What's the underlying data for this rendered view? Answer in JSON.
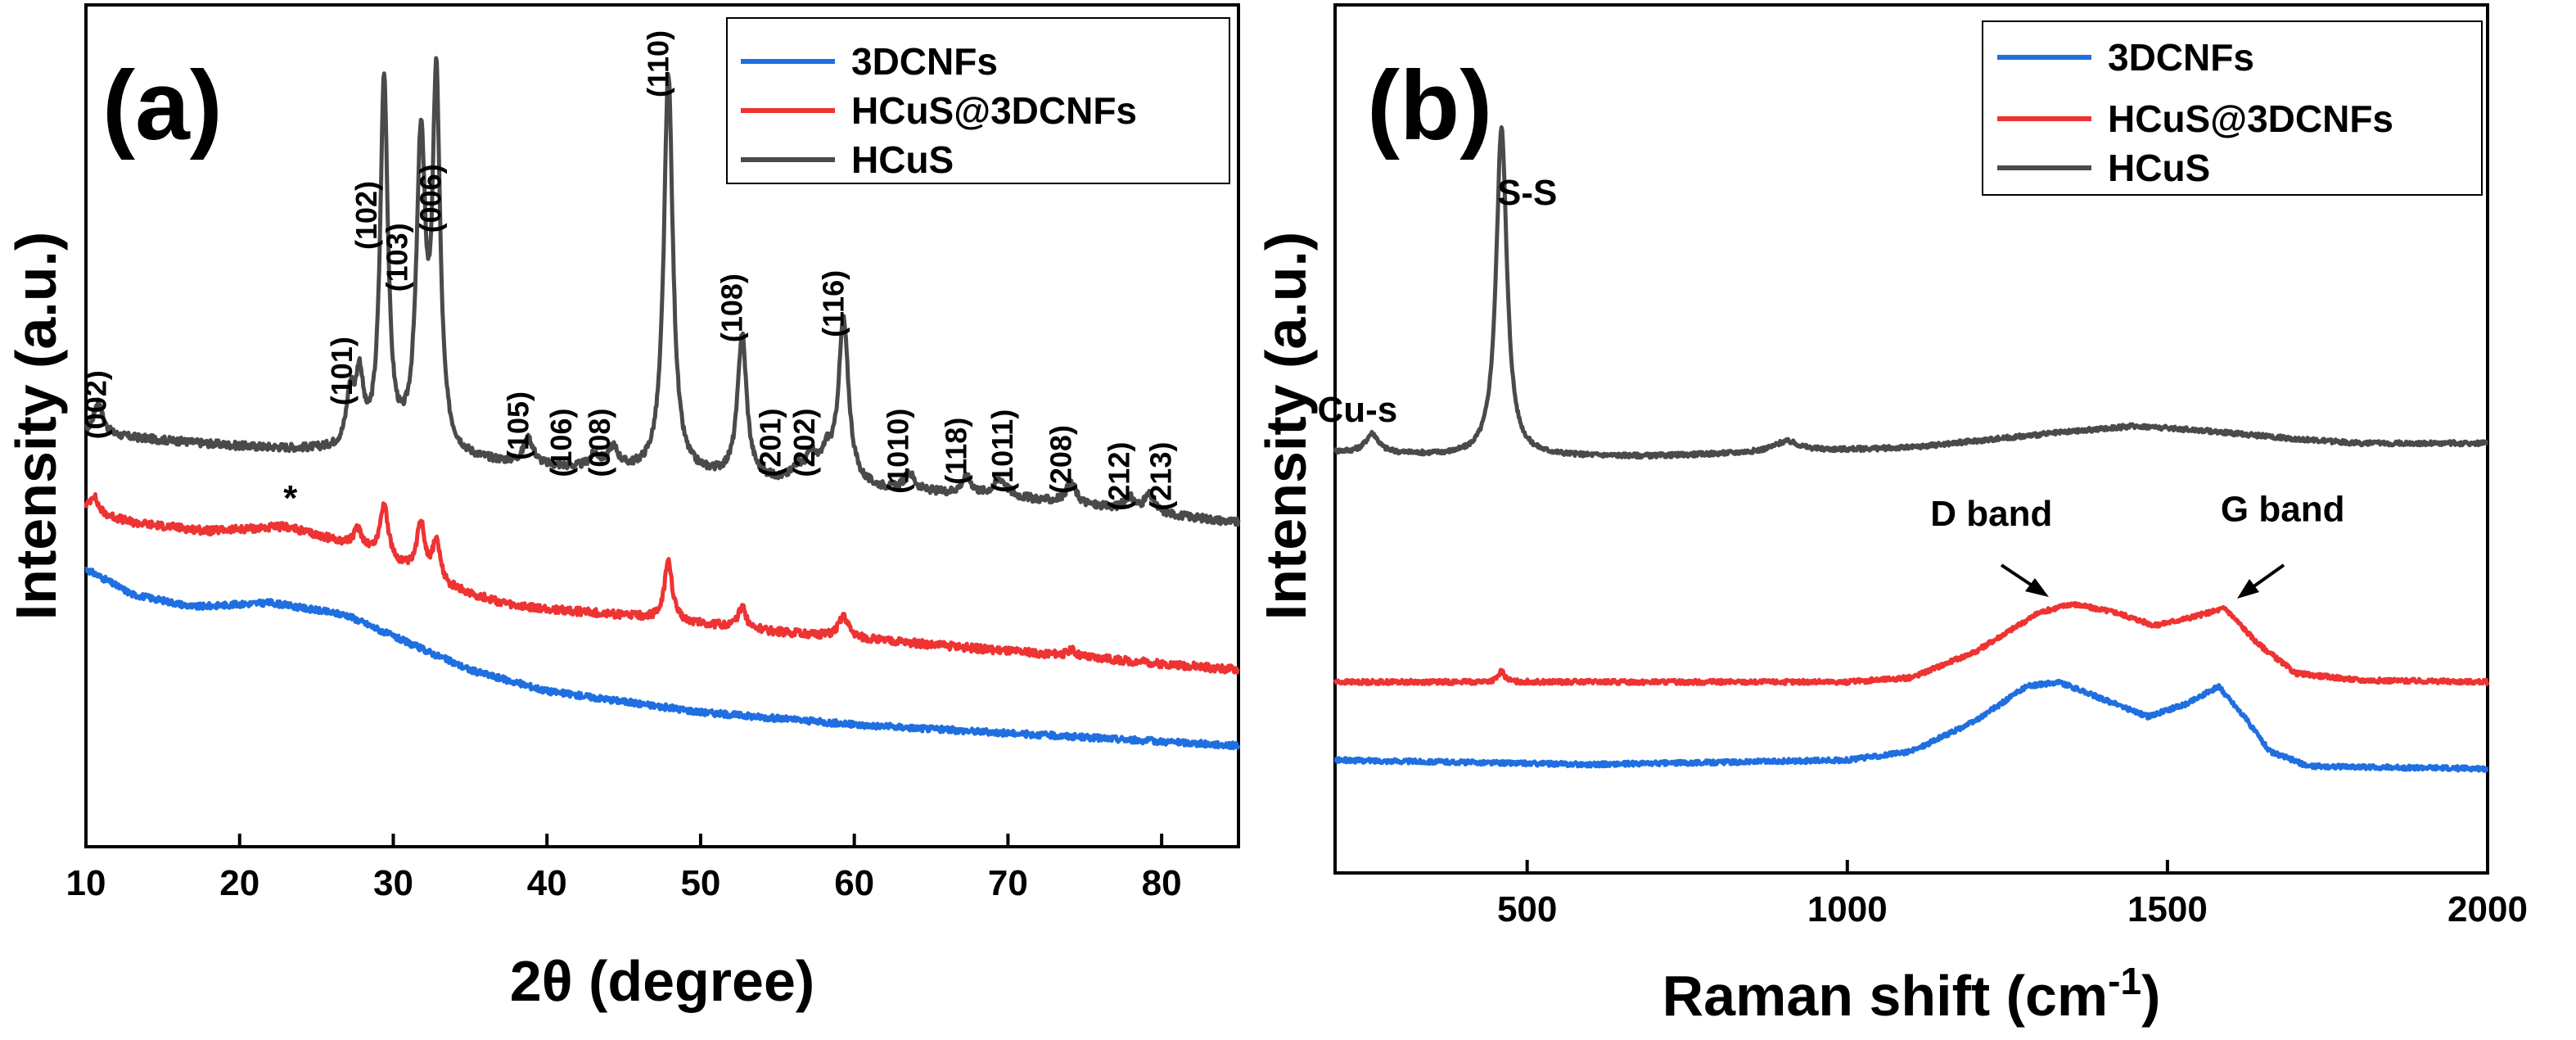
{
  "colors": {
    "blue": "#1f6fe0",
    "red": "#ee3333",
    "gray": "#4a4a4a"
  },
  "chart_data": [
    {
      "type": "line",
      "panel_label": "(a)",
      "title": "",
      "xlabel": "2θ (degree)",
      "ylabel": "Intensity (a.u.)",
      "xlim": [
        10,
        85
      ],
      "ylim": [
        0,
        100
      ],
      "xticks": [
        10,
        20,
        30,
        40,
        50,
        60,
        70,
        80
      ],
      "legend": [
        {
          "label": "3DCNFs",
          "color": "#1f6fe0"
        },
        {
          "label": "HCuS@3DCNFs",
          "color": "#ee3333"
        },
        {
          "label": "HCuS",
          "color": "#4a4a4a"
        }
      ],
      "series": [
        {
          "name": "HCuS",
          "color": "#4a4a4a",
          "noise": 0.45,
          "baseline": [
            [
              10,
              49
            ],
            [
              20,
              47.5
            ],
            [
              30,
              46.5
            ],
            [
              40,
              45
            ],
            [
              50,
              44
            ],
            [
              60,
              42.5
            ],
            [
              70,
              41.5
            ],
            [
              85,
              38.5
            ]
          ],
          "peaks": [
            [
              10.8,
              4,
              0.35
            ],
            [
              27.2,
              6,
              0.3
            ],
            [
              27.8,
              8,
              0.3
            ],
            [
              29.4,
              44,
              0.3
            ],
            [
              31.8,
              36,
              0.35
            ],
            [
              32.8,
              43,
              0.3
            ],
            [
              38.8,
              3,
              0.4
            ],
            [
              43.1,
              1.5,
              0.4
            ],
            [
              44.3,
              2.5,
              0.4
            ],
            [
              47.9,
              47.5,
              0.35
            ],
            [
              52.7,
              17,
              0.35
            ],
            [
              56.3,
              1.5,
              0.4
            ],
            [
              57.2,
              3,
              0.4
            ],
            [
              58.2,
              3,
              0.4
            ],
            [
              59.3,
              19.5,
              0.4
            ],
            [
              63.6,
              2,
              0.4
            ],
            [
              67.3,
              2,
              0.4
            ],
            [
              69.5,
              2,
              0.5
            ],
            [
              74.1,
              2.5,
              0.4
            ],
            [
              77.9,
              1.5,
              0.4
            ],
            [
              79.2,
              2,
              0.4
            ]
          ]
        },
        {
          "name": "HCuS@3DCNFs",
          "color": "#ee3333",
          "noise": 0.45,
          "baseline": [
            [
              10,
              40
            ],
            [
              13,
              38.5
            ],
            [
              18,
              37.5
            ],
            [
              23,
              38
            ],
            [
              28,
              35.5
            ],
            [
              33,
              31
            ],
            [
              38,
              28.5
            ],
            [
              45,
              27.5
            ],
            [
              55,
              25.5
            ],
            [
              65,
              24
            ],
            [
              75,
              22.5
            ],
            [
              85,
              21
            ]
          ],
          "peaks": [
            [
              10.5,
              2,
              0.3
            ],
            [
              27.7,
              2,
              0.3
            ],
            [
              29.4,
              6.5,
              0.3
            ],
            [
              31.8,
              6.5,
              0.3
            ],
            [
              32.8,
              5,
              0.3
            ],
            [
              47.9,
              7,
              0.3
            ],
            [
              52.7,
              2.5,
              0.3
            ],
            [
              59.3,
              2.5,
              0.4
            ],
            [
              74.1,
              0.8,
              0.3
            ]
          ]
        },
        {
          "name": "3DCNFs",
          "color": "#1f6fe0",
          "noise": 0.35,
          "baseline": [
            [
              10,
              33
            ],
            [
              13,
              30
            ],
            [
              17,
              28.5
            ],
            [
              22,
              29
            ],
            [
              27,
              27.5
            ],
            [
              30,
              25
            ],
            [
              35,
              21
            ],
            [
              40,
              18.5
            ],
            [
              50,
              16
            ],
            [
              60,
              14.5
            ],
            [
              70,
              13.5
            ],
            [
              85,
              12
            ]
          ],
          "peaks": []
        }
      ],
      "annotations": [
        {
          "text": "(002)",
          "x": 11.3,
          "y": 52.5
        },
        {
          "text": "(101)",
          "x": 27.3,
          "y": 56.5
        },
        {
          "text": "(102)",
          "x": 28.9,
          "y": 75
        },
        {
          "text": "(103)",
          "x": 30.9,
          "y": 70
        },
        {
          "text": "(006)",
          "x": 33.1,
          "y": 77
        },
        {
          "text": "(105)",
          "x": 38.8,
          "y": 50
        },
        {
          "text": "(106)",
          "x": 41.6,
          "y": 48
        },
        {
          "text": "(008)",
          "x": 44.1,
          "y": 48
        },
        {
          "text": "(110)",
          "x": 47.9,
          "y": 93
        },
        {
          "text": "(108)",
          "x": 52.7,
          "y": 64
        },
        {
          "text": "(201)",
          "x": 55.2,
          "y": 48
        },
        {
          "text": "(202)",
          "x": 57.4,
          "y": 48
        },
        {
          "text": "(116)",
          "x": 59.3,
          "y": 64.5
        },
        {
          "text": "(1010)",
          "x": 63.5,
          "y": 47
        },
        {
          "text": "(118)",
          "x": 67.3,
          "y": 47
        },
        {
          "text": "(1011)",
          "x": 70.3,
          "y": 47
        },
        {
          "text": "(208)",
          "x": 74.1,
          "y": 46
        },
        {
          "text": "(212)",
          "x": 77.9,
          "y": 44
        },
        {
          "text": "(213)",
          "x": 80.6,
          "y": 44
        },
        {
          "text": "*",
          "x": 23.3,
          "y": 40
        }
      ]
    },
    {
      "type": "line",
      "panel_label": "(b)",
      "title": "",
      "xlabel": "Raman shift (",
      "xlabel_unit": "cm",
      "xlabel_exp": "-1",
      "xlabel_close": ")",
      "ylabel": "Intensity (a.u.)",
      "xlim": [
        200,
        2000
      ],
      "ylim": [
        0,
        100
      ],
      "xticks": [
        500,
        1000,
        1500,
        2000
      ],
      "legend": [
        {
          "label": "3DCNFs",
          "color": "#1f6fe0"
        },
        {
          "label": "HCuS@3DCNFs",
          "color": "#ee3333"
        },
        {
          "label": "HCuS",
          "color": "#4a4a4a"
        }
      ],
      "series": [
        {
          "name": "HCuS",
          "color": "#4a4a4a",
          "noise": 0.25,
          "baseline": [
            [
              200,
              48.5
            ],
            [
              400,
              48
            ],
            [
              700,
              48
            ],
            [
              900,
              48.5
            ],
            [
              1100,
              49
            ],
            [
              1300,
              50.5
            ],
            [
              1450,
              51.5
            ],
            [
              1550,
              51
            ],
            [
              1700,
              50
            ],
            [
              1800,
              49.5
            ],
            [
              2000,
              49.5
            ]
          ],
          "peaks": [
            [
              258,
              2.2,
              12
            ],
            [
              460,
              38,
              10
            ],
            [
              905,
              1.2,
              25
            ]
          ]
        },
        {
          "name": "HCuS@3DCNFs",
          "color": "#ee3333",
          "noise": 0.25,
          "baseline": [
            [
              200,
              22
            ],
            [
              800,
              22
            ],
            [
              1000,
              22
            ],
            [
              1100,
              22.5
            ],
            [
              1200,
              25.5
            ],
            [
              1300,
              30
            ],
            [
              1350,
              31
            ],
            [
              1420,
              30
            ],
            [
              1480,
              28.5
            ],
            [
              1540,
              29.5
            ],
            [
              1590,
              30.5
            ],
            [
              1640,
              26.5
            ],
            [
              1700,
              23
            ],
            [
              1800,
              22.2
            ],
            [
              2000,
              22
            ]
          ],
          "peaks": [
            [
              460,
              1.2,
              6
            ]
          ]
        },
        {
          "name": "3DCNFs",
          "color": "#1f6fe0",
          "noise": 0.25,
          "baseline": [
            [
              200,
              13
            ],
            [
              600,
              12.5
            ],
            [
              1000,
              13
            ],
            [
              1100,
              14
            ],
            [
              1200,
              17.5
            ],
            [
              1280,
              21.5
            ],
            [
              1330,
              22
            ],
            [
              1400,
              20
            ],
            [
              1470,
              18
            ],
            [
              1530,
              19.5
            ],
            [
              1580,
              21.5
            ],
            [
              1620,
              18
            ],
            [
              1660,
              14
            ],
            [
              1720,
              12.3
            ],
            [
              2000,
              12
            ]
          ],
          "peaks": []
        }
      ],
      "annotations": [
        {
          "text": "S-S",
          "x": 500,
          "y": 77
        },
        {
          "text": "Cu-s",
          "x": 235,
          "y": 52
        },
        {
          "text": "D band",
          "x": 1225,
          "y": 40
        },
        {
          "text": "G band",
          "x": 1680,
          "y": 40.5
        }
      ]
    }
  ]
}
